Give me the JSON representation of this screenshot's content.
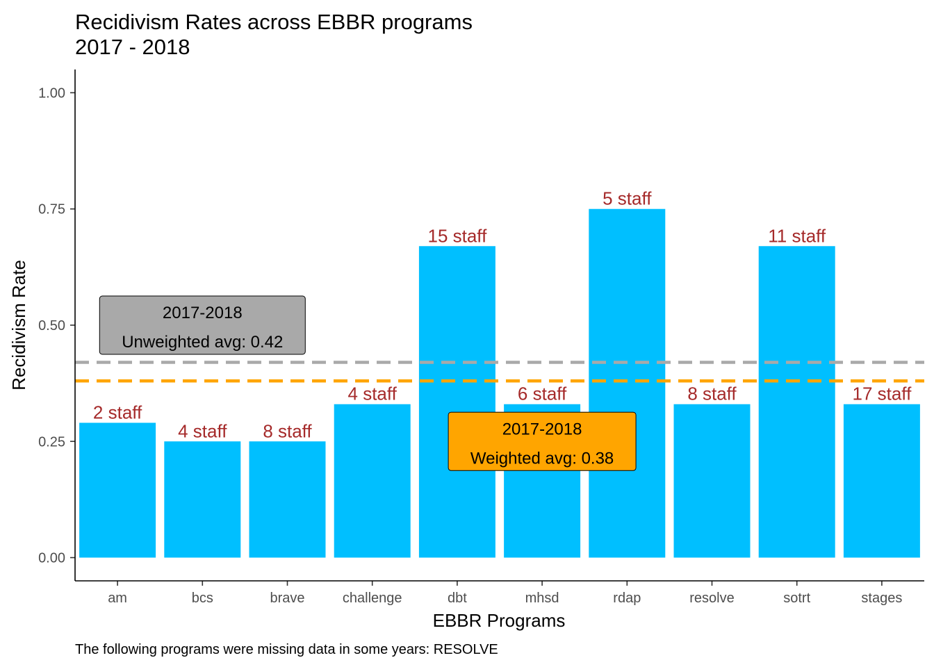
{
  "chart_data": {
    "type": "bar",
    "title": [
      "Recidivism Rates across EBBR programs",
      "2017 - 2018"
    ],
    "xlabel": "EBBR Programs",
    "ylabel": "Recidivism Rate",
    "caption": "The following programs were missing data in some years: RESOLVE",
    "categories": [
      "am",
      "bcs",
      "brave",
      "challenge",
      "dbt",
      "mhsd",
      "rdap",
      "resolve",
      "sotrt",
      "stages"
    ],
    "values": [
      0.29,
      0.25,
      0.25,
      0.33,
      0.67,
      0.33,
      0.75,
      0.33,
      0.67,
      0.33
    ],
    "bar_labels": [
      "2 staff",
      "4 staff",
      "8 staff",
      "4 staff",
      "15 staff",
      "6 staff",
      "5 staff",
      "8 staff",
      "11 staff",
      "17 staff"
    ],
    "ylim": [
      -0.05,
      1.05
    ],
    "yticks": [
      0.0,
      0.25,
      0.5,
      0.75,
      1.0
    ],
    "ytick_labels": [
      "0.00",
      "0.25",
      "0.50",
      "0.75",
      "1.00"
    ],
    "grid": false,
    "bar_color": "#00bfff",
    "bar_label_color": "#a52a2a",
    "reference_lines": [
      {
        "value": 0.42,
        "color": "#a9a9a9",
        "style": "dashed"
      },
      {
        "value": 0.38,
        "color": "#ffa500",
        "style": "dashed"
      }
    ],
    "annotations": [
      {
        "lines": [
          "2017-2018",
          "Unweighted avg: 0.42"
        ],
        "fill": "#a9a9a9",
        "anchor_category": "bcs",
        "anchor_y": 0.5
      },
      {
        "lines": [
          "2017-2018",
          "Weighted avg: 0.38"
        ],
        "fill": "#ffa500",
        "anchor_category": "mhsd",
        "anchor_y": 0.25
      }
    ]
  }
}
